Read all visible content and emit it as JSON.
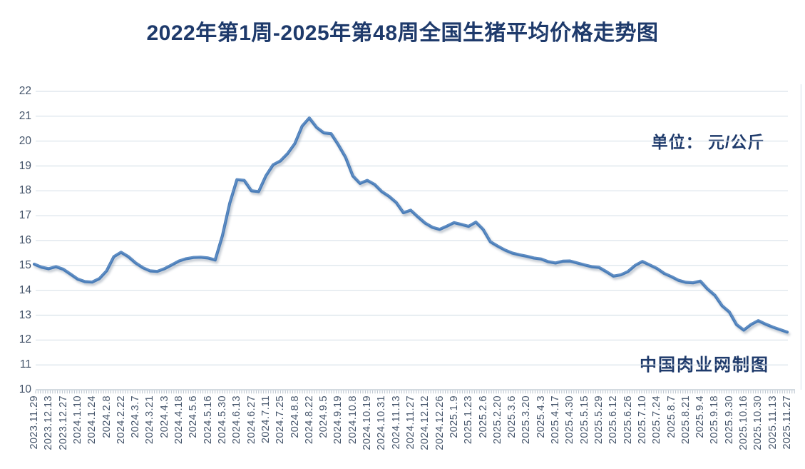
{
  "title": "2022年第1周-2025年第48周全国生猪平均价格走势图",
  "unit_label": "单位： 元/公斤",
  "credit_label": "中国肉业网制图",
  "colors": {
    "line": "#4a7db8",
    "line_highlight": "#7aa3d4",
    "grid": "#d9e2ea",
    "axis": "#b9c3cd",
    "axis_text": "#44546a",
    "heading_text": "#1e3a6b",
    "right_border": "#e3e9f0"
  },
  "chart_data": {
    "type": "line",
    "title": "2022年第1周-2025年第48周全国生猪平均价格走势图",
    "ylabel": "元/公斤",
    "ylim": [
      10,
      22
    ],
    "y_ticks": [
      10,
      11,
      12,
      13,
      14,
      15,
      16,
      17,
      18,
      19,
      20,
      21,
      22
    ],
    "grid": true,
    "legend": "none",
    "label_step": 2,
    "tick_labels": [
      "2023.11.29",
      "2023.12.13",
      "2023.12.27",
      "2024.1.10",
      "2024.1.24",
      "2024.2.8",
      "2024.2.22",
      "2024.3.7",
      "2024.3.21",
      "2024.4.3",
      "2024.4.18",
      "2024.5.6",
      "2024.5.16",
      "2024.5.30",
      "2024.6.13",
      "2024.6.27",
      "2024.7.11",
      "2024.7.25",
      "2024.8.8",
      "2024.8.22",
      "2024.9.5",
      "2024.9.19",
      "2024.10.8",
      "2024.10.19",
      "2024.10.31",
      "2024.11.13",
      "2024.11.27",
      "2024.12.12",
      "2024.12.26",
      "2025.1.9",
      "2025.1.23",
      "2025.2.6",
      "2025.2.20",
      "2025.3.6",
      "2025.3.20",
      "2025.4.3",
      "2025.4.17",
      "2025.4.30",
      "2025.5.15",
      "2025.5.29",
      "2025.6.12",
      "2025.6.26",
      "2025.7.10",
      "2025.7.24",
      "2025.8.7",
      "2025.8.21",
      "2025.9.4",
      "2025.9.18",
      "2025.9.30",
      "2025.10.16",
      "2025.10.30",
      "2025.11.13",
      "2025.11.27"
    ],
    "series": [
      {
        "name": "全国生猪平均价格",
        "values": [
          15.05,
          14.93,
          14.87,
          14.95,
          14.85,
          14.65,
          14.45,
          14.35,
          14.33,
          14.47,
          14.78,
          15.35,
          15.53,
          15.35,
          15.1,
          14.91,
          14.78,
          14.76,
          14.87,
          15.02,
          15.18,
          15.27,
          15.32,
          15.33,
          15.3,
          15.22,
          16.2,
          17.5,
          18.45,
          18.42,
          18.0,
          17.97,
          18.6,
          19.05,
          19.2,
          19.5,
          19.9,
          20.6,
          20.93,
          20.55,
          20.33,
          20.3,
          19.85,
          19.35,
          18.6,
          18.3,
          18.42,
          18.26,
          17.97,
          17.78,
          17.53,
          17.12,
          17.22,
          16.95,
          16.7,
          16.53,
          16.45,
          16.58,
          16.72,
          16.65,
          16.57,
          16.74,
          16.45,
          15.95,
          15.78,
          15.62,
          15.5,
          15.43,
          15.37,
          15.3,
          15.26,
          15.15,
          15.1,
          15.17,
          15.18,
          15.1,
          15.02,
          14.95,
          14.92,
          14.75,
          14.57,
          14.62,
          14.75,
          15.0,
          15.16,
          15.02,
          14.88,
          14.68,
          14.55,
          14.4,
          14.32,
          14.3,
          14.37,
          14.05,
          13.8,
          13.38,
          13.13,
          12.62,
          12.4,
          12.62,
          12.78,
          12.64,
          12.52,
          12.42,
          12.32
        ]
      }
    ]
  }
}
